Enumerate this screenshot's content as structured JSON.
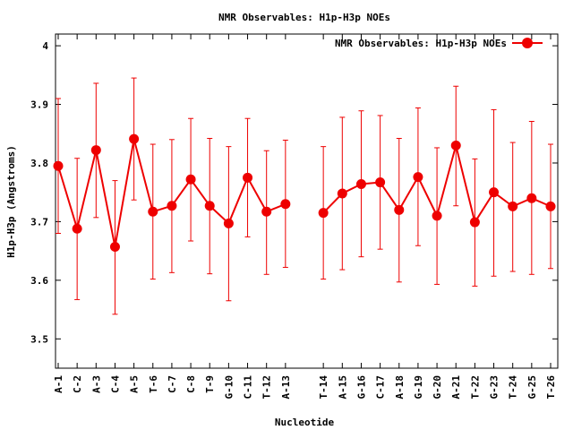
{
  "chart_data": {
    "type": "line",
    "title": "NMR Observables: H1p-H3p NOEs",
    "xlabel": "Nucleotide",
    "ylabel": "H1p-H3p (Angstroms)",
    "ylim": [
      3.45,
      4.02
    ],
    "yticks": [
      3.5,
      3.6,
      3.7,
      3.8,
      3.9,
      4.0
    ],
    "ytick_labels": [
      "3.5",
      "3.6",
      "3.7",
      "3.8",
      "3.9",
      "4"
    ],
    "legend": {
      "label": "NMR Observables: H1p-H3p NOEs",
      "position": "top-right"
    },
    "color": "#ee0000",
    "series": [
      {
        "name": "NMR Observables: H1p-H3p NOEs",
        "segments": [
          {
            "categories": [
              "A-1",
              "C-2",
              "A-3",
              "C-4",
              "A-5",
              "T-6",
              "C-7",
              "C-8",
              "T-9",
              "G-10",
              "C-11",
              "T-12",
              "A-13"
            ],
            "values": [
              3.795,
              3.688,
              3.822,
              3.657,
              3.841,
              3.717,
              3.727,
              3.772,
              3.727,
              3.697,
              3.775,
              3.717,
              3.73
            ],
            "err_low": [
              3.68,
              3.567,
              3.707,
              3.542,
              3.737,
              3.602,
              3.613,
              3.667,
              3.611,
              3.565,
              3.674,
              3.61,
              3.622
            ],
            "err_high": [
              3.91,
              3.808,
              3.936,
              3.77,
              3.945,
              3.832,
              3.84,
              3.876,
              3.842,
              3.828,
              3.876,
              3.821,
              3.839
            ]
          },
          {
            "categories": [
              "T-14",
              "A-15",
              "G-16",
              "C-17",
              "A-18",
              "G-19",
              "G-20",
              "A-21",
              "T-22",
              "G-23",
              "T-24",
              "G-25",
              "T-26"
            ],
            "values": [
              3.715,
              3.748,
              3.764,
              3.767,
              3.72,
              3.776,
              3.71,
              3.83,
              3.699,
              3.75,
              3.726,
              3.74,
              3.726
            ],
            "err_low": [
              3.602,
              3.618,
              3.64,
              3.653,
              3.597,
              3.659,
              3.593,
              3.727,
              3.59,
              3.607,
              3.615,
              3.61,
              3.62
            ],
            "err_high": [
              3.828,
              3.878,
              3.889,
              3.881,
              3.842,
              3.894,
              3.826,
              3.931,
              3.807,
              3.891,
              3.835,
              3.871,
              3.832
            ]
          }
        ]
      }
    ]
  }
}
